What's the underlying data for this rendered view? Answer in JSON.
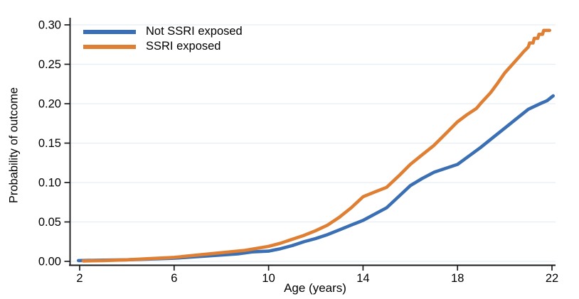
{
  "chart_data": {
    "type": "line",
    "title": "",
    "xlabel": "Age (years)",
    "ylabel": "Probability of outcome",
    "xlim": [
      2,
      22
    ],
    "ylim": [
      0,
      0.3
    ],
    "xticks": [
      2,
      6,
      10,
      14,
      18,
      22
    ],
    "xtick_labels": [
      "2",
      "6",
      "10",
      "14",
      "18",
      "22"
    ],
    "yticks": [
      0,
      0.05,
      0.1,
      0.15,
      0.2,
      0.25,
      0.3
    ],
    "ytick_labels": [
      "0.00",
      "0.05",
      "0.10",
      "0.15",
      "0.20",
      "0.25",
      "0.30"
    ],
    "grid": "horizontal-only",
    "legend_position": "top-left-inside",
    "colors": {
      "background": "#ffffff",
      "grid": "#e3edf3",
      "axis": "#1a1a1a",
      "text": "#000000"
    },
    "series": [
      {
        "name": "Not SSRI exposed",
        "color": "#3b6fb3",
        "points": [
          [
            1.95,
            0.001
          ],
          [
            3,
            0.0015
          ],
          [
            4,
            0.002
          ],
          [
            5,
            0.003
          ],
          [
            6,
            0.004
          ],
          [
            7,
            0.006
          ],
          [
            8,
            0.008
          ],
          [
            8.7,
            0.0095
          ],
          [
            9.3,
            0.012
          ],
          [
            10,
            0.013
          ],
          [
            10.5,
            0.016
          ],
          [
            11,
            0.02
          ],
          [
            11.5,
            0.025
          ],
          [
            12,
            0.029
          ],
          [
            12.5,
            0.034
          ],
          [
            13,
            0.04
          ],
          [
            13.5,
            0.046
          ],
          [
            14,
            0.052
          ],
          [
            14.5,
            0.06
          ],
          [
            15,
            0.068
          ],
          [
            15.5,
            0.082
          ],
          [
            16,
            0.096
          ],
          [
            16.5,
            0.105
          ],
          [
            17,
            0.113
          ],
          [
            17.5,
            0.118
          ],
          [
            18,
            0.123
          ],
          [
            18.5,
            0.134
          ],
          [
            19,
            0.145
          ],
          [
            19.5,
            0.157
          ],
          [
            20,
            0.169
          ],
          [
            20.5,
            0.181
          ],
          [
            21,
            0.193
          ],
          [
            21.5,
            0.2
          ],
          [
            21.8,
            0.204
          ],
          [
            22.05,
            0.21
          ]
        ]
      },
      {
        "name": "SSRI exposed",
        "color": "#df7f33",
        "points": [
          [
            2.15,
            0.0005
          ],
          [
            3,
            0.001
          ],
          [
            4,
            0.002
          ],
          [
            5,
            0.0035
          ],
          [
            6,
            0.005
          ],
          [
            7,
            0.008
          ],
          [
            8,
            0.011
          ],
          [
            9,
            0.014
          ],
          [
            10,
            0.019
          ],
          [
            10.5,
            0.023
          ],
          [
            11,
            0.028
          ],
          [
            11.5,
            0.033
          ],
          [
            12,
            0.039
          ],
          [
            12.5,
            0.046
          ],
          [
            13,
            0.056
          ],
          [
            13.5,
            0.068
          ],
          [
            14,
            0.082
          ],
          [
            14.5,
            0.088
          ],
          [
            15,
            0.094
          ],
          [
            15.5,
            0.108
          ],
          [
            16,
            0.123
          ],
          [
            16.5,
            0.135
          ],
          [
            17,
            0.147
          ],
          [
            17.5,
            0.162
          ],
          [
            18,
            0.177
          ],
          [
            18.4,
            0.186
          ],
          [
            18.8,
            0.194
          ],
          [
            19,
            0.201
          ],
          [
            19.4,
            0.214
          ],
          [
            19.7,
            0.226
          ],
          [
            20,
            0.239
          ],
          [
            20.3,
            0.249
          ],
          [
            20.6,
            0.259
          ],
          [
            20.8,
            0.266
          ],
          [
            21,
            0.272
          ],
          [
            21.05,
            0.277
          ],
          [
            21.2,
            0.277
          ],
          [
            21.25,
            0.283
          ],
          [
            21.4,
            0.283
          ],
          [
            21.45,
            0.288
          ],
          [
            21.6,
            0.288
          ],
          [
            21.65,
            0.293
          ],
          [
            21.9,
            0.293
          ]
        ]
      }
    ]
  },
  "legend": {
    "items": [
      {
        "label": "Not SSRI exposed"
      },
      {
        "label": "SSRI exposed"
      }
    ]
  }
}
